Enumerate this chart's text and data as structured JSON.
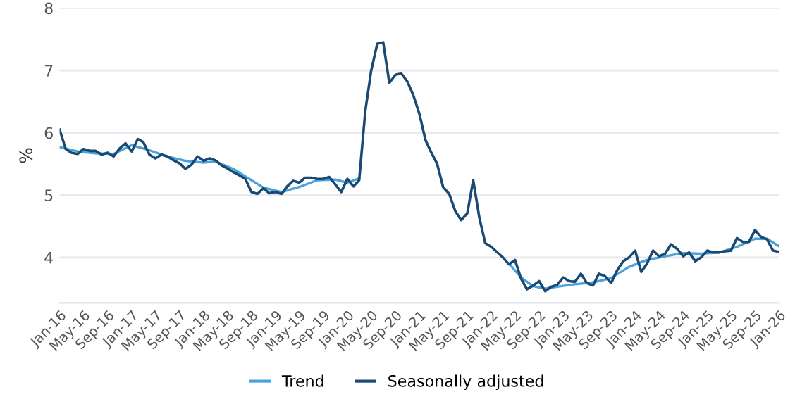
{
  "chart_data": {
    "type": "line",
    "ylabel": "%",
    "xlim": [
      "2016-01",
      "2026-01"
    ],
    "ylim": [
      3.27,
      8
    ],
    "yticks": [
      {
        "value": 3.27,
        "label": null
      },
      4,
      5,
      6,
      7,
      8
    ],
    "xticks": [
      {
        "value": "2016-01",
        "label": "Jan-16"
      },
      {
        "value": "2016-05",
        "label": "May-16"
      },
      {
        "value": "2016-09",
        "label": "Sep-16"
      },
      {
        "value": "2017-01",
        "label": "Jan-17"
      },
      {
        "value": "2017-05",
        "label": "May-17"
      },
      {
        "value": "2017-09",
        "label": "Sep-17"
      },
      {
        "value": "2018-01",
        "label": "Jan-18"
      },
      {
        "value": "2018-05",
        "label": "May-18"
      },
      {
        "value": "2018-09",
        "label": "Sep-18"
      },
      {
        "value": "2019-01",
        "label": "Jan-19"
      },
      {
        "value": "2019-05",
        "label": "May-19"
      },
      {
        "value": "2019-09",
        "label": "Sep-19"
      },
      {
        "value": "2020-01",
        "label": "Jan-20"
      },
      {
        "value": "2020-05",
        "label": "May-20"
      },
      {
        "value": "2020-09",
        "label": "Sep-20"
      },
      {
        "value": "2021-01",
        "label": "Jan-21"
      },
      {
        "value": "2021-05",
        "label": "May-21"
      },
      {
        "value": "2021-09",
        "label": "Sep-21"
      },
      {
        "value": "2022-01",
        "label": "Jan-22"
      },
      {
        "value": "2022-05",
        "label": "May-22"
      },
      {
        "value": "2022-09",
        "label": "Sep-22"
      },
      {
        "value": "2023-01",
        "label": "Jan-23"
      },
      {
        "value": "2023-05",
        "label": "May-23"
      },
      {
        "value": "2023-09",
        "label": "Sep-23"
      },
      {
        "value": "2024-01",
        "label": "Jan-24"
      },
      {
        "value": "2024-05",
        "label": "May-24"
      },
      {
        "value": "2024-09",
        "label": "Sep-24"
      },
      {
        "value": "2025-01",
        "label": "Jan-25"
      },
      {
        "value": "2025-05",
        "label": "May-25"
      },
      {
        "value": "2025-09",
        "label": "Sep-25"
      },
      {
        "value": "2026-01",
        "label": "Jan-26"
      }
    ],
    "grid": "y",
    "legend": "bottom",
    "marker": "none",
    "line_style": "solid",
    "series": [
      {
        "name": "Trend",
        "color": "#4ba3dc",
        "x": [
          "2016-01",
          "2016-04",
          "2016-07",
          "2016-10",
          "2017-01",
          "2017-04",
          "2017-07",
          "2017-10",
          "2018-01",
          "2018-03",
          "2018-06",
          "2018-08",
          "2018-11",
          "2019-02",
          "2019-05",
          "2019-08",
          "2019-11",
          "2020-01",
          "2020-03",
          "2020-04",
          "2022-03",
          "2022-04",
          "2022-06",
          "2022-08",
          "2022-10",
          "2022-12",
          "2023-03",
          "2023-06",
          "2023-09",
          "2023-12",
          "2024-03",
          "2024-06",
          "2024-09",
          "2024-12",
          "2025-03",
          "2025-06",
          "2025-09",
          "2025-11",
          "2026-01"
        ],
        "values": [
          5.77,
          5.7,
          5.67,
          5.66,
          5.8,
          5.72,
          5.62,
          5.55,
          5.52,
          5.54,
          5.42,
          5.3,
          5.12,
          5.05,
          5.13,
          5.24,
          5.25,
          5.2,
          5.27,
          null,
          null,
          3.9,
          3.68,
          3.54,
          3.5,
          3.53,
          3.57,
          3.6,
          3.67,
          3.85,
          3.96,
          4.02,
          4.07,
          4.06,
          4.08,
          4.17,
          4.3,
          4.3,
          4.18
        ]
      },
      {
        "name": "Seasonally adjusted",
        "color": "#1a4a73",
        "x": [
          "2016-01",
          "2016-02",
          "2016-03",
          "2016-04",
          "2016-05",
          "2016-06",
          "2016-07",
          "2016-08",
          "2016-09",
          "2016-10",
          "2016-11",
          "2016-12",
          "2017-01",
          "2017-02",
          "2017-03",
          "2017-04",
          "2017-05",
          "2017-06",
          "2017-07",
          "2017-08",
          "2017-09",
          "2017-10",
          "2017-11",
          "2017-12",
          "2018-01",
          "2018-02",
          "2018-03",
          "2018-04",
          "2018-05",
          "2018-06",
          "2018-07",
          "2018-08",
          "2018-09",
          "2018-10",
          "2018-11",
          "2018-12",
          "2019-01",
          "2019-02",
          "2019-03",
          "2019-04",
          "2019-05",
          "2019-06",
          "2019-07",
          "2019-08",
          "2019-09",
          "2019-10",
          "2019-11",
          "2019-12",
          "2020-01",
          "2020-02",
          "2020-03",
          "2020-04",
          "2020-05",
          "2020-06",
          "2020-07",
          "2020-08",
          "2020-09",
          "2020-10",
          "2020-11",
          "2020-12",
          "2021-01",
          "2021-02",
          "2021-03",
          "2021-04",
          "2021-05",
          "2021-06",
          "2021-07",
          "2021-08",
          "2021-09",
          "2021-10",
          "2021-11",
          "2021-12",
          "2022-01",
          "2022-02",
          "2022-03",
          "2022-04",
          "2022-05",
          "2022-06",
          "2022-07",
          "2022-08",
          "2022-09",
          "2022-10",
          "2022-11",
          "2022-12",
          "2023-01",
          "2023-02",
          "2023-03",
          "2023-04",
          "2023-05",
          "2023-06",
          "2023-07",
          "2023-08",
          "2023-09",
          "2023-10",
          "2023-11",
          "2023-12",
          "2024-01",
          "2024-02",
          "2024-03",
          "2024-04",
          "2024-05",
          "2024-06",
          "2024-07",
          "2024-08",
          "2024-09",
          "2024-10",
          "2024-11",
          "2024-12",
          "2025-01",
          "2025-02",
          "2025-03",
          "2025-04",
          "2025-05",
          "2025-06",
          "2025-07",
          "2025-08",
          "2025-09",
          "2025-10",
          "2025-11",
          "2025-12",
          "2026-01"
        ],
        "values": [
          6.05,
          5.74,
          5.68,
          5.66,
          5.74,
          5.71,
          5.71,
          5.65,
          5.68,
          5.62,
          5.75,
          5.83,
          5.7,
          5.9,
          5.85,
          5.65,
          5.59,
          5.65,
          5.62,
          5.56,
          5.51,
          5.42,
          5.49,
          5.62,
          5.55,
          5.59,
          5.56,
          5.48,
          5.43,
          5.37,
          5.32,
          5.26,
          5.05,
          5.02,
          5.11,
          5.03,
          5.05,
          5.02,
          5.14,
          5.23,
          5.2,
          5.28,
          5.28,
          5.26,
          5.26,
          5.29,
          5.17,
          5.05,
          5.26,
          5.14,
          5.24,
          6.35,
          7.0,
          7.43,
          7.45,
          6.8,
          6.93,
          6.95,
          6.82,
          6.6,
          6.3,
          5.88,
          5.69,
          5.5,
          5.13,
          5.02,
          4.75,
          4.6,
          4.71,
          5.24,
          4.64,
          4.23,
          4.17,
          4.08,
          4.0,
          3.89,
          3.96,
          3.66,
          3.49,
          3.55,
          3.62,
          3.46,
          3.53,
          3.56,
          3.68,
          3.62,
          3.61,
          3.74,
          3.59,
          3.55,
          3.74,
          3.7,
          3.59,
          3.79,
          3.94,
          4.0,
          4.11,
          3.77,
          3.9,
          4.11,
          4.02,
          4.06,
          4.21,
          4.14,
          4.02,
          4.08,
          3.94,
          4.0,
          4.11,
          4.08,
          4.08,
          4.1,
          4.11,
          4.31,
          4.25,
          4.25,
          4.44,
          4.33,
          4.29,
          4.11,
          4.09
        ]
      }
    ]
  }
}
